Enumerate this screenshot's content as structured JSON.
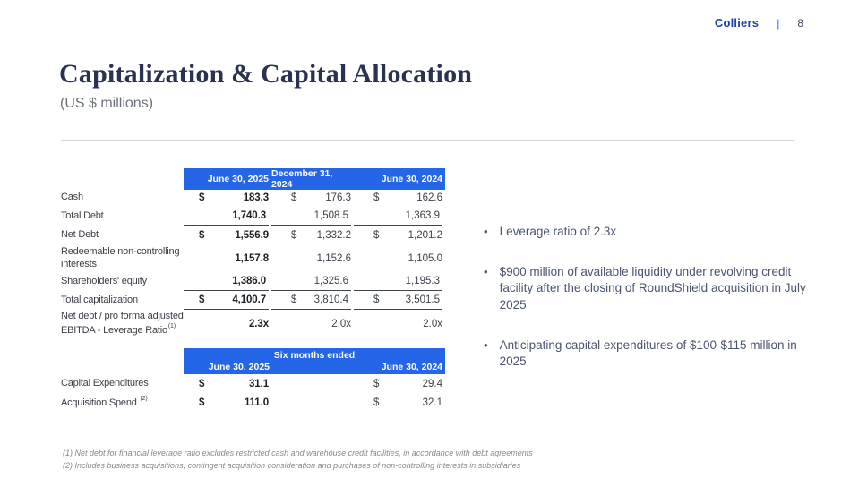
{
  "header": {
    "brand": "Colliers",
    "separator": "|",
    "page_number": "8"
  },
  "title": "Capitalization & Capital Allocation",
  "subtitle": "(US $ millions)",
  "symbols": {
    "dollar": "$",
    "bullet": "•"
  },
  "colors": {
    "table_header_bg": "#2565e8",
    "brand_blue": "#1e3fae",
    "title_navy": "#2a3251",
    "body_text": "#3b3f48",
    "bullet_text": "#4a546e",
    "footnote_gray": "#84888f"
  },
  "cap_table": {
    "columns": [
      "June 30, 2025",
      "December 31, 2024",
      "June 30, 2024"
    ],
    "rows": [
      {
        "label": "Cash",
        "values": [
          "183.3",
          "176.3",
          "162.6"
        ]
      },
      {
        "label": "Total Debt",
        "values": [
          "1,740.3",
          "1,508.5",
          "1,363.9"
        ]
      },
      {
        "label": "Net Debt",
        "values": [
          "1,556.9",
          "1,332.2",
          "1,201.2"
        ]
      },
      {
        "label": "Redeemable non-controlling interests",
        "values": [
          "1,157.8",
          "1,152.6",
          "1,105.0"
        ]
      },
      {
        "label": "Shareholders' equity",
        "values": [
          "1,386.0",
          "1,325.6",
          "1,195.3"
        ]
      },
      {
        "label": "Total capitalization",
        "values": [
          "4,100.7",
          "3,810.4",
          "3,501.5"
        ]
      },
      {
        "label": "Net debt / pro forma adjusted EBITDA - Leverage Ratio",
        "footnote_ref": "(1)",
        "values": [
          "2.3x",
          "2.0x",
          "2.0x"
        ]
      }
    ]
  },
  "six_months_table": {
    "span_header": "Six months ended",
    "columns": [
      "June 30, 2025",
      "June 30, 2024"
    ],
    "rows": [
      {
        "label": "Capital Expenditures",
        "values": [
          "31.1",
          "29.4"
        ]
      },
      {
        "label": "Acquisition Spend",
        "footnote_ref": "(2)",
        "values": [
          "111.0",
          "32.1"
        ]
      }
    ]
  },
  "bullets": [
    "Leverage ratio of 2.3x",
    "$900 million of available liquidity under revolving credit facility after the closing of RoundShield acquisition in July 2025",
    "Anticipating capital expenditures of $100-$115 million in 2025"
  ],
  "footnotes": [
    "(1) Net debt for financial leverage ratio excludes restricted cash and warehouse credit facilities, in accordance with debt agreements",
    "(2) Includes business acquisitions, contingent acquisition consideration and purchases of non-controlling interests in subsidiaries"
  ]
}
